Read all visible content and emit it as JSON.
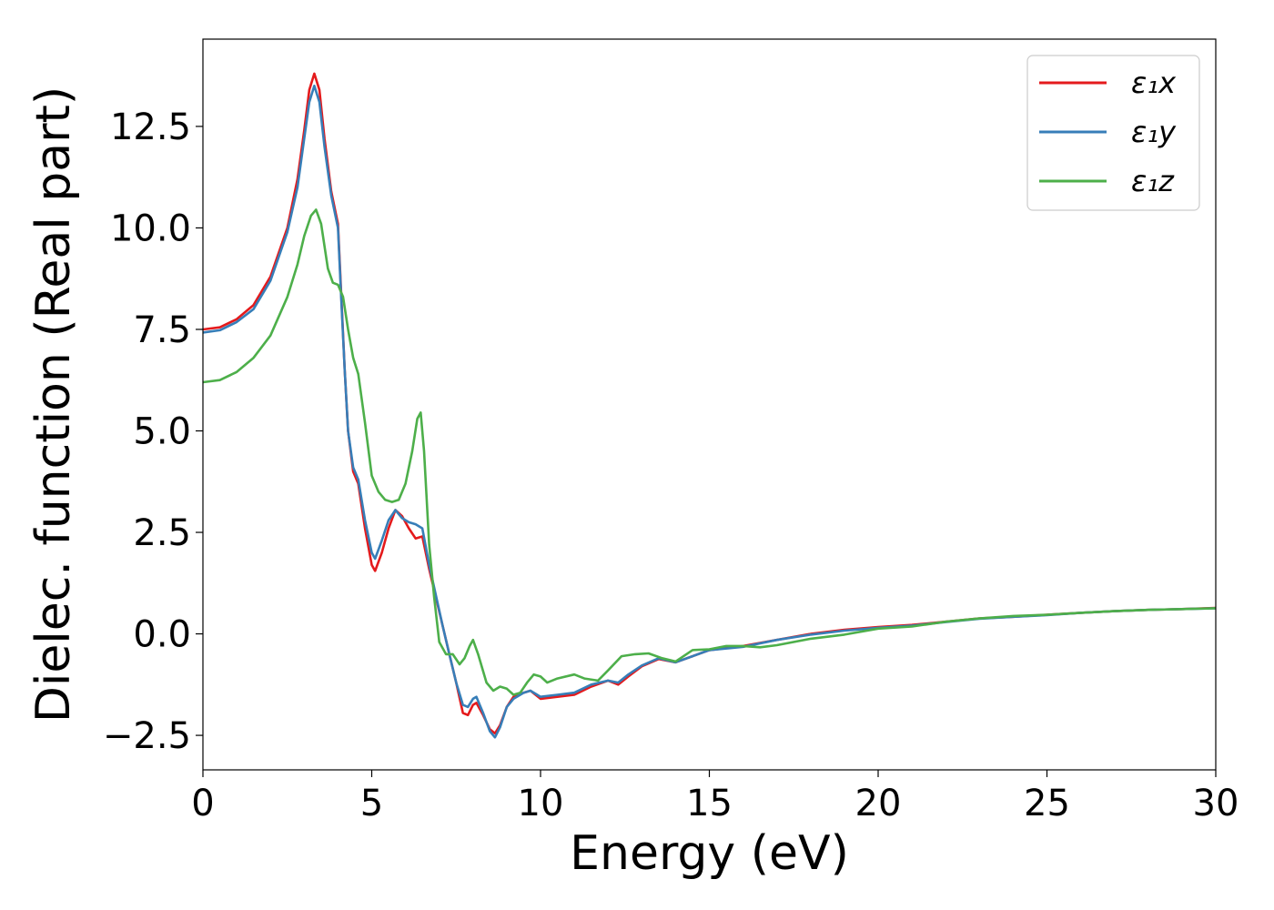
{
  "chart_data": {
    "type": "line",
    "title": "",
    "xlabel": "Energy (eV)",
    "ylabel": "Dielec. function (Real part)",
    "xlim": [
      0,
      30
    ],
    "ylim": [
      -3.35,
      14.65
    ],
    "x_ticks": [
      0,
      5,
      10,
      15,
      20,
      25,
      30
    ],
    "y_ticks": [
      -2.5,
      0.0,
      2.5,
      5.0,
      7.5,
      10.0,
      12.5
    ],
    "x_tick_labels": [
      "0",
      "5",
      "10",
      "15",
      "20",
      "25",
      "30"
    ],
    "y_tick_labels": [
      "−2.5",
      "0.0",
      "2.5",
      "5.0",
      "7.5",
      "10.0",
      "12.5"
    ],
    "grid": false,
    "legend_position": "top-right",
    "series": [
      {
        "name": "ε₁x",
        "color": "#e41a1c",
        "points": [
          [
            0,
            7.5
          ],
          [
            0.5,
            7.55
          ],
          [
            1,
            7.75
          ],
          [
            1.5,
            8.1
          ],
          [
            2,
            8.8
          ],
          [
            2.5,
            10.0
          ],
          [
            2.8,
            11.2
          ],
          [
            3.0,
            12.4
          ],
          [
            3.15,
            13.4
          ],
          [
            3.3,
            13.8
          ],
          [
            3.45,
            13.4
          ],
          [
            3.6,
            12.2
          ],
          [
            3.8,
            10.9
          ],
          [
            4.0,
            10.1
          ],
          [
            4.1,
            8.3
          ],
          [
            4.2,
            6.5
          ],
          [
            4.3,
            5.0
          ],
          [
            4.45,
            4.0
          ],
          [
            4.6,
            3.7
          ],
          [
            4.8,
            2.6
          ],
          [
            5.0,
            1.7
          ],
          [
            5.1,
            1.55
          ],
          [
            5.3,
            2.0
          ],
          [
            5.5,
            2.6
          ],
          [
            5.7,
            3.05
          ],
          [
            5.9,
            2.9
          ],
          [
            6.1,
            2.6
          ],
          [
            6.3,
            2.35
          ],
          [
            6.5,
            2.4
          ],
          [
            6.7,
            1.6
          ],
          [
            6.9,
            0.9
          ],
          [
            7.1,
            0.2
          ],
          [
            7.3,
            -0.5
          ],
          [
            7.5,
            -1.2
          ],
          [
            7.7,
            -1.95
          ],
          [
            7.85,
            -2.0
          ],
          [
            8.0,
            -1.75
          ],
          [
            8.1,
            -1.7
          ],
          [
            8.3,
            -2.0
          ],
          [
            8.5,
            -2.35
          ],
          [
            8.65,
            -2.45
          ],
          [
            8.8,
            -2.25
          ],
          [
            9.0,
            -1.8
          ],
          [
            9.2,
            -1.55
          ],
          [
            9.5,
            -1.45
          ],
          [
            9.7,
            -1.4
          ],
          [
            10.0,
            -1.6
          ],
          [
            10.5,
            -1.55
          ],
          [
            11.0,
            -1.5
          ],
          [
            11.5,
            -1.3
          ],
          [
            12.0,
            -1.15
          ],
          [
            12.3,
            -1.25
          ],
          [
            12.6,
            -1.05
          ],
          [
            13.0,
            -0.8
          ],
          [
            13.5,
            -0.62
          ],
          [
            14.0,
            -0.7
          ],
          [
            14.5,
            -0.55
          ],
          [
            15.0,
            -0.4
          ],
          [
            16.0,
            -0.3
          ],
          [
            17.0,
            -0.15
          ],
          [
            18.0,
            0.0
          ],
          [
            19.0,
            0.1
          ],
          [
            20.0,
            0.17
          ],
          [
            21.0,
            0.22
          ],
          [
            22.0,
            0.3
          ],
          [
            23.0,
            0.38
          ],
          [
            24.0,
            0.42
          ],
          [
            25.0,
            0.47
          ],
          [
            26.0,
            0.52
          ],
          [
            27.0,
            0.56
          ],
          [
            28.0,
            0.59
          ],
          [
            29.0,
            0.61
          ],
          [
            30.0,
            0.64
          ]
        ]
      },
      {
        "name": "ε₁y",
        "color": "#377eb8",
        "points": [
          [
            0,
            7.42
          ],
          [
            0.5,
            7.48
          ],
          [
            1,
            7.68
          ],
          [
            1.5,
            8.0
          ],
          [
            2,
            8.7
          ],
          [
            2.5,
            9.9
          ],
          [
            2.8,
            11.0
          ],
          [
            3.0,
            12.2
          ],
          [
            3.15,
            13.1
          ],
          [
            3.3,
            13.5
          ],
          [
            3.45,
            13.1
          ],
          [
            3.6,
            12.0
          ],
          [
            3.8,
            10.8
          ],
          [
            4.0,
            10.0
          ],
          [
            4.1,
            8.2
          ],
          [
            4.2,
            6.5
          ],
          [
            4.3,
            5.0
          ],
          [
            4.45,
            4.1
          ],
          [
            4.6,
            3.8
          ],
          [
            4.8,
            2.8
          ],
          [
            5.0,
            2.0
          ],
          [
            5.1,
            1.85
          ],
          [
            5.3,
            2.3
          ],
          [
            5.5,
            2.8
          ],
          [
            5.7,
            3.05
          ],
          [
            5.9,
            2.85
          ],
          [
            6.1,
            2.75
          ],
          [
            6.3,
            2.7
          ],
          [
            6.5,
            2.6
          ],
          [
            6.7,
            1.7
          ],
          [
            6.9,
            0.95
          ],
          [
            7.1,
            0.2
          ],
          [
            7.3,
            -0.5
          ],
          [
            7.5,
            -1.2
          ],
          [
            7.7,
            -1.75
          ],
          [
            7.85,
            -1.8
          ],
          [
            8.0,
            -1.6
          ],
          [
            8.1,
            -1.55
          ],
          [
            8.3,
            -1.95
          ],
          [
            8.5,
            -2.4
          ],
          [
            8.65,
            -2.55
          ],
          [
            8.8,
            -2.3
          ],
          [
            9.0,
            -1.8
          ],
          [
            9.2,
            -1.6
          ],
          [
            9.5,
            -1.45
          ],
          [
            9.7,
            -1.4
          ],
          [
            10.0,
            -1.55
          ],
          [
            10.5,
            -1.5
          ],
          [
            11.0,
            -1.45
          ],
          [
            11.5,
            -1.25
          ],
          [
            12.0,
            -1.15
          ],
          [
            12.3,
            -1.2
          ],
          [
            12.6,
            -1.0
          ],
          [
            13.0,
            -0.78
          ],
          [
            13.5,
            -0.6
          ],
          [
            14.0,
            -0.7
          ],
          [
            14.5,
            -0.55
          ],
          [
            15.0,
            -0.4
          ],
          [
            16.0,
            -0.32
          ],
          [
            17.0,
            -0.15
          ],
          [
            18.0,
            -0.02
          ],
          [
            19.0,
            0.08
          ],
          [
            20.0,
            0.15
          ],
          [
            21.0,
            0.2
          ],
          [
            22.0,
            0.29
          ],
          [
            23.0,
            0.37
          ],
          [
            24.0,
            0.42
          ],
          [
            25.0,
            0.46
          ],
          [
            26.0,
            0.52
          ],
          [
            27.0,
            0.56
          ],
          [
            28.0,
            0.59
          ],
          [
            29.0,
            0.61
          ],
          [
            30.0,
            0.63
          ]
        ]
      },
      {
        "name": "ε₁z",
        "color": "#4daf4a",
        "points": [
          [
            0,
            6.2
          ],
          [
            0.5,
            6.25
          ],
          [
            1,
            6.45
          ],
          [
            1.5,
            6.8
          ],
          [
            2,
            7.35
          ],
          [
            2.5,
            8.3
          ],
          [
            2.8,
            9.1
          ],
          [
            3.0,
            9.8
          ],
          [
            3.2,
            10.3
          ],
          [
            3.35,
            10.45
          ],
          [
            3.5,
            10.1
          ],
          [
            3.7,
            9.0
          ],
          [
            3.85,
            8.65
          ],
          [
            4.0,
            8.6
          ],
          [
            4.15,
            8.3
          ],
          [
            4.3,
            7.5
          ],
          [
            4.45,
            6.8
          ],
          [
            4.6,
            6.4
          ],
          [
            4.8,
            5.2
          ],
          [
            5.0,
            3.9
          ],
          [
            5.2,
            3.5
          ],
          [
            5.4,
            3.3
          ],
          [
            5.6,
            3.25
          ],
          [
            5.8,
            3.3
          ],
          [
            6.0,
            3.7
          ],
          [
            6.2,
            4.5
          ],
          [
            6.35,
            5.3
          ],
          [
            6.45,
            5.45
          ],
          [
            6.55,
            4.5
          ],
          [
            6.7,
            2.2
          ],
          [
            6.85,
            0.9
          ],
          [
            7.0,
            -0.2
          ],
          [
            7.2,
            -0.5
          ],
          [
            7.4,
            -0.5
          ],
          [
            7.6,
            -0.75
          ],
          [
            7.75,
            -0.6
          ],
          [
            7.9,
            -0.3
          ],
          [
            8.0,
            -0.15
          ],
          [
            8.15,
            -0.5
          ],
          [
            8.4,
            -1.2
          ],
          [
            8.6,
            -1.4
          ],
          [
            8.8,
            -1.3
          ],
          [
            9.0,
            -1.35
          ],
          [
            9.2,
            -1.5
          ],
          [
            9.4,
            -1.45
          ],
          [
            9.6,
            -1.2
          ],
          [
            9.8,
            -1.0
          ],
          [
            10.0,
            -1.05
          ],
          [
            10.2,
            -1.2
          ],
          [
            10.5,
            -1.1
          ],
          [
            11.0,
            -1.0
          ],
          [
            11.3,
            -1.1
          ],
          [
            11.7,
            -1.15
          ],
          [
            12.0,
            -0.9
          ],
          [
            12.4,
            -0.55
          ],
          [
            12.8,
            -0.5
          ],
          [
            13.2,
            -0.48
          ],
          [
            13.6,
            -0.6
          ],
          [
            14.0,
            -0.68
          ],
          [
            14.5,
            -0.4
          ],
          [
            15.0,
            -0.38
          ],
          [
            15.5,
            -0.3
          ],
          [
            16.0,
            -0.3
          ],
          [
            16.5,
            -0.33
          ],
          [
            17.0,
            -0.28
          ],
          [
            18.0,
            -0.12
          ],
          [
            19.0,
            -0.02
          ],
          [
            20.0,
            0.13
          ],
          [
            21.0,
            0.18
          ],
          [
            22.0,
            0.3
          ],
          [
            23.0,
            0.38
          ],
          [
            24.0,
            0.44
          ],
          [
            25.0,
            0.47
          ],
          [
            26.0,
            0.52
          ],
          [
            27.0,
            0.56
          ],
          [
            28.0,
            0.59
          ],
          [
            29.0,
            0.61
          ],
          [
            30.0,
            0.63
          ]
        ]
      }
    ]
  }
}
